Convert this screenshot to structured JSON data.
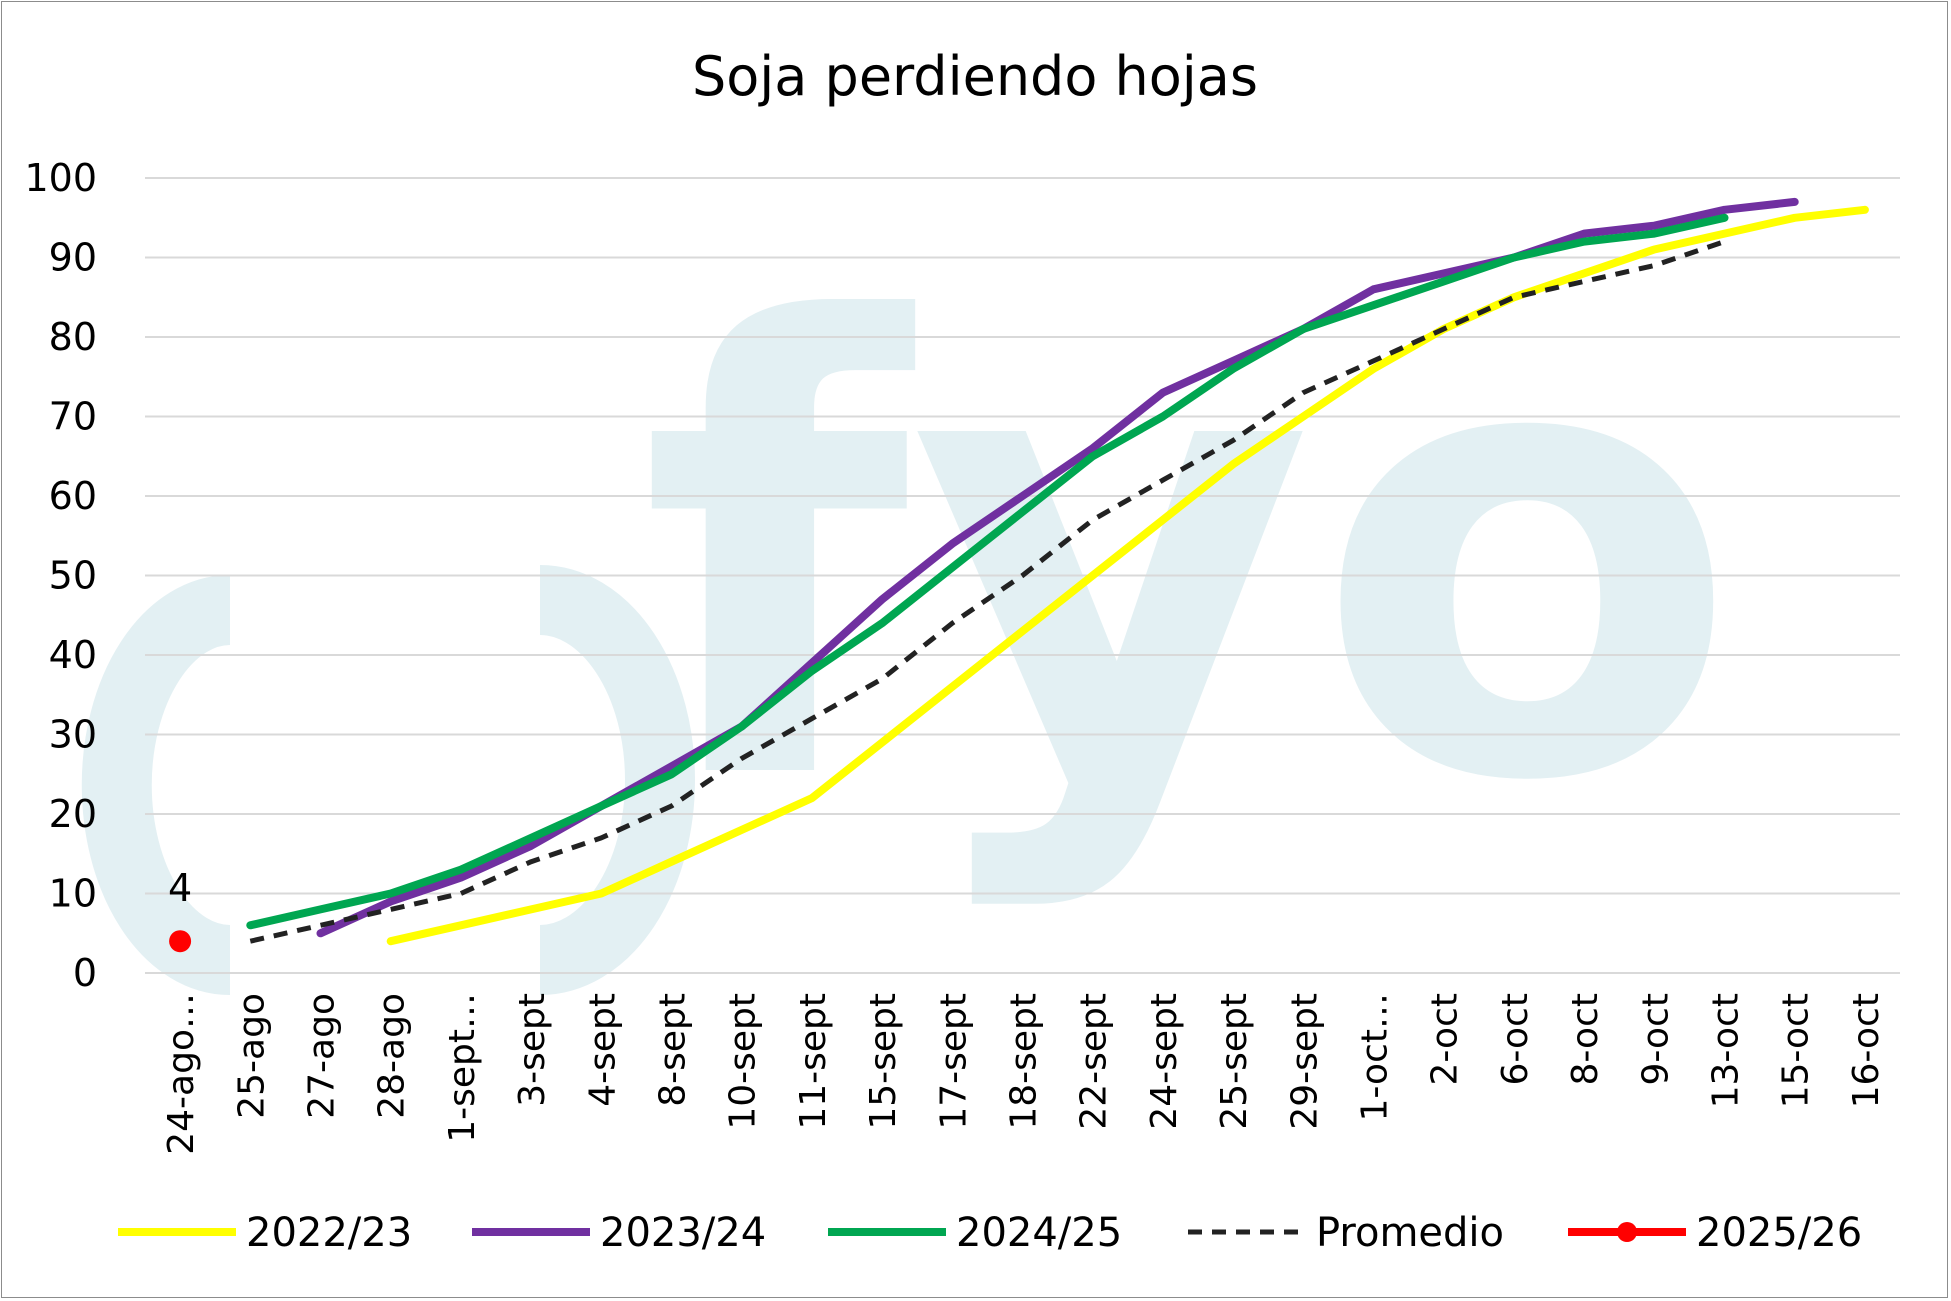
{
  "chart_data": {
    "type": "line",
    "title": "Soja perdiendo hojas",
    "watermark": "fyo",
    "xlabel": "",
    "ylabel": "",
    "ylim": [
      0,
      100
    ],
    "yticks": [
      0,
      10,
      20,
      30,
      40,
      50,
      60,
      70,
      80,
      90,
      100
    ],
    "grid": true,
    "legend_position": "bottom",
    "categories": [
      "24-ago…",
      "25-ago",
      "27-ago",
      "28-ago",
      "1-sept…",
      "3-sept",
      "4-sept",
      "8-sept",
      "10-sept",
      "11-sept",
      "15-sept",
      "17-sept",
      "18-sept",
      "22-sept",
      "24-sept",
      "25-sept",
      "29-sept",
      "1-oct…",
      "2-oct",
      "6-oct",
      "8-oct",
      "9-oct",
      "13-oct",
      "15-oct",
      "16-oct"
    ],
    "series": [
      {
        "name": "2022/23",
        "color": "#ffff00",
        "style": "solid",
        "values": [
          null,
          null,
          null,
          4,
          6,
          8,
          10,
          14,
          18,
          22,
          29,
          36,
          43,
          50,
          57,
          64,
          70,
          76,
          81,
          85,
          88,
          91,
          93,
          95,
          96
        ]
      },
      {
        "name": "2023/24",
        "color": "#7030a0",
        "style": "solid",
        "values": [
          null,
          null,
          5,
          9,
          12,
          16,
          21,
          26,
          31,
          39,
          47,
          54,
          60,
          66,
          73,
          77,
          81,
          86,
          88,
          90,
          93,
          94,
          96,
          97,
          null
        ]
      },
      {
        "name": "2024/25",
        "color": "#00a651",
        "style": "solid",
        "values": [
          null,
          6,
          8,
          10,
          13,
          17,
          21,
          25,
          31,
          38,
          44,
          51,
          58,
          65,
          70,
          76,
          81,
          84,
          87,
          90,
          92,
          93,
          95,
          null,
          null
        ]
      },
      {
        "name": "Promedio",
        "color": "#222222",
        "style": "dashed",
        "values": [
          null,
          4,
          6,
          8,
          10,
          14,
          17,
          21,
          27,
          32,
          37,
          44,
          50,
          57,
          62,
          67,
          73,
          77,
          81,
          85,
          87,
          89,
          92,
          null,
          null
        ]
      },
      {
        "name": "2025/26",
        "color": "#ff0000",
        "style": "marker",
        "values": [
          4,
          null,
          null,
          null,
          null,
          null,
          null,
          null,
          null,
          null,
          null,
          null,
          null,
          null,
          null,
          null,
          null,
          null,
          null,
          null,
          null,
          null,
          null,
          null,
          null
        ],
        "data_labels": [
          "4"
        ]
      }
    ]
  }
}
